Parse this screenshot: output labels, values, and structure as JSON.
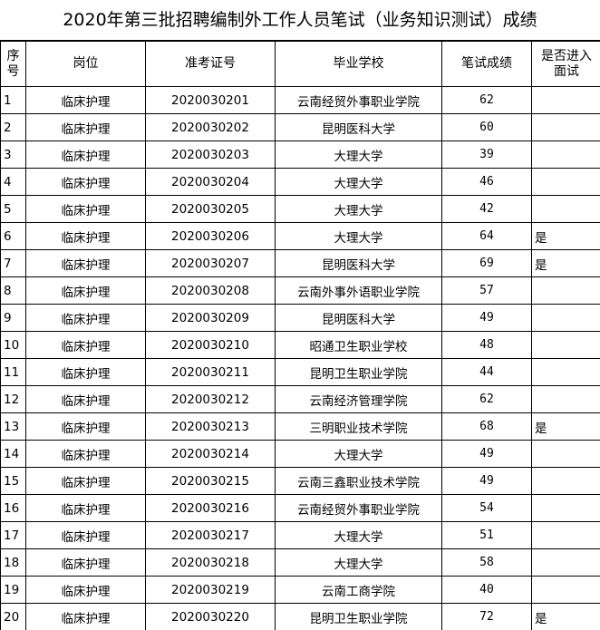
{
  "title": "2020年第三批招聘编制外工作人员笔试（业务知识测试）成绩",
  "headers": {
    "seq": "序号",
    "post": "岗位",
    "id": "准考证号",
    "school": "毕业学校",
    "score": "笔试成绩",
    "interview_1": "是否进入",
    "interview_2": "面试"
  },
  "headers_seq_lines": [
    "序",
    "号"
  ],
  "rows": [
    {
      "seq": "1",
      "post": "临床护理",
      "id": "2020030201",
      "school": "云南经贸外事职业学院",
      "score": "62",
      "interview": ""
    },
    {
      "seq": "2",
      "post": "临床护理",
      "id": "2020030202",
      "school": "昆明医科大学",
      "score": "60",
      "interview": ""
    },
    {
      "seq": "3",
      "post": "临床护理",
      "id": "2020030203",
      "school": "大理大学",
      "score": "39",
      "interview": ""
    },
    {
      "seq": "4",
      "post": "临床护理",
      "id": "2020030204",
      "school": "大理大学",
      "score": "46",
      "interview": ""
    },
    {
      "seq": "5",
      "post": "临床护理",
      "id": "2020030205",
      "school": "大理大学",
      "score": "42",
      "interview": ""
    },
    {
      "seq": "6",
      "post": "临床护理",
      "id": "2020030206",
      "school": "大理大学",
      "score": "64",
      "interview": "是"
    },
    {
      "seq": "7",
      "post": "临床护理",
      "id": "2020030207",
      "school": "昆明医科大学",
      "score": "69",
      "interview": "是"
    },
    {
      "seq": "8",
      "post": "临床护理",
      "id": "2020030208",
      "school": "云南外事外语职业学院",
      "score": "57",
      "interview": ""
    },
    {
      "seq": "9",
      "post": "临床护理",
      "id": "2020030209",
      "school": "昆明医科大学",
      "score": "49",
      "interview": ""
    },
    {
      "seq": "10",
      "post": "临床护理",
      "id": "2020030210",
      "school": "昭通卫生职业学校",
      "score": "48",
      "interview": ""
    },
    {
      "seq": "11",
      "post": "临床护理",
      "id": "2020030211",
      "school": "昆明卫生职业学院",
      "score": "44",
      "interview": ""
    },
    {
      "seq": "12",
      "post": "临床护理",
      "id": "2020030212",
      "school": "云南经济管理学院",
      "score": "62",
      "interview": ""
    },
    {
      "seq": "13",
      "post": "临床护理",
      "id": "2020030213",
      "school": "三明职业技术学院",
      "score": "68",
      "interview": "是"
    },
    {
      "seq": "14",
      "post": "临床护理",
      "id": "2020030214",
      "school": "大理大学",
      "score": "49",
      "interview": ""
    },
    {
      "seq": "15",
      "post": "临床护理",
      "id": "2020030215",
      "school": "云南三鑫职业技术学院",
      "score": "49",
      "interview": ""
    },
    {
      "seq": "16",
      "post": "临床护理",
      "id": "2020030216",
      "school": "云南经贸外事职业学院",
      "score": "54",
      "interview": ""
    },
    {
      "seq": "17",
      "post": "临床护理",
      "id": "2020030217",
      "school": "大理大学",
      "score": "51",
      "interview": ""
    },
    {
      "seq": "18",
      "post": "临床护理",
      "id": "2020030218",
      "school": "大理大学",
      "score": "58",
      "interview": ""
    },
    {
      "seq": "19",
      "post": "临床护理",
      "id": "2020030219",
      "school": "云南工商学院",
      "score": "40",
      "interview": ""
    },
    {
      "seq": "20",
      "post": "临床护理",
      "id": "2020030220",
      "school": "昆明卫生职业学院",
      "score": "72",
      "interview": "是"
    }
  ]
}
